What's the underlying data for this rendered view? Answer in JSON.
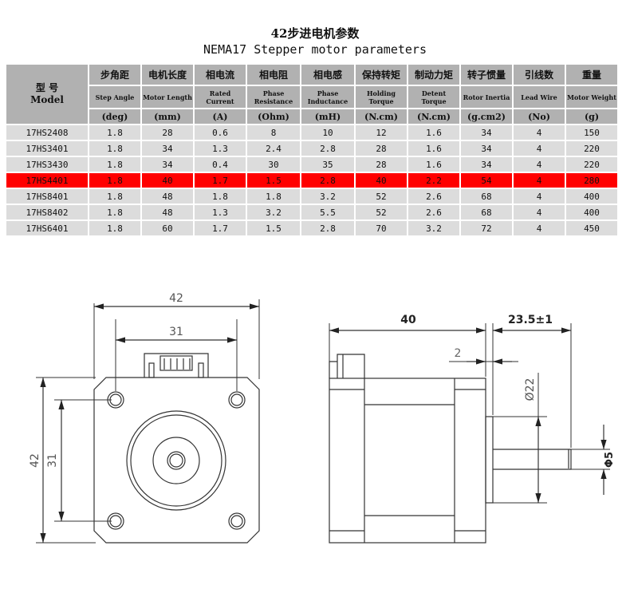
{
  "title_cn": "42步进电机参数",
  "title_en": "NEMA17 Stepper motor parameters",
  "table": {
    "model_header": {
      "cn": "型  号",
      "en": "Model"
    },
    "columns": [
      {
        "cn": "步角距",
        "en": "Step Angle",
        "unit": "(deg)"
      },
      {
        "cn": "电机长度",
        "en": "Motor Length",
        "unit": "(mm)"
      },
      {
        "cn": "相电流",
        "en": "Rated Current",
        "unit": "(A)"
      },
      {
        "cn": "相电阻",
        "en": "Phase Resistance",
        "unit": "(Ohm)"
      },
      {
        "cn": "相电感",
        "en": "Phase Inductance",
        "unit": "(mH)"
      },
      {
        "cn": "保持转矩",
        "en": "Holding Torque",
        "unit": "(N.cm)"
      },
      {
        "cn": "制动力矩",
        "en": "Detent Torque",
        "unit": "(N.cm)"
      },
      {
        "cn": "转子惯量",
        "en": "Rotor Inertia",
        "unit": "(g.cm2)"
      },
      {
        "cn": "引线数",
        "en": "Lead Wire",
        "unit": "(No)"
      },
      {
        "cn": "重量",
        "en": "Motor Weight",
        "unit": "(g)"
      }
    ],
    "rows": [
      [
        "17HS2408",
        "1.8",
        "28",
        "0.6",
        "8",
        "10",
        "12",
        "1.6",
        "34",
        "4",
        "150"
      ],
      [
        "17HS3401",
        "1.8",
        "34",
        "1.3",
        "2.4",
        "2.8",
        "28",
        "1.6",
        "34",
        "4",
        "220"
      ],
      [
        "17HS3430",
        "1.8",
        "34",
        "0.4",
        "30",
        "35",
        "28",
        "1.6",
        "34",
        "4",
        "220"
      ],
      [
        "17HS4401",
        "1.8",
        "40",
        "1.7",
        "1.5",
        "2.8",
        "40",
        "2.2",
        "54",
        "4",
        "280"
      ],
      [
        "17HS8401",
        "1.8",
        "48",
        "1.8",
        "1.8",
        "3.2",
        "52",
        "2.6",
        "68",
        "4",
        "400"
      ],
      [
        "17HS8402",
        "1.8",
        "48",
        "1.3",
        "3.2",
        "5.5",
        "52",
        "2.6",
        "68",
        "4",
        "400"
      ],
      [
        "17HS6401",
        "1.8",
        "60",
        "1.7",
        "1.5",
        "2.8",
        "70",
        "3.2",
        "72",
        "4",
        "450"
      ]
    ],
    "highlighted_row": "17HS4401",
    "highlight_color": "#ff0000"
  },
  "drawing": {
    "front": {
      "width": "42",
      "hole_spacing": "31",
      "height": "42",
      "hole_spacing_v": "31"
    },
    "side": {
      "body_length": "40",
      "shaft_length": "23.5±1",
      "boss_height": "2",
      "boss_diameter": "Ø22",
      "shaft_diameter": "Φ5"
    }
  }
}
